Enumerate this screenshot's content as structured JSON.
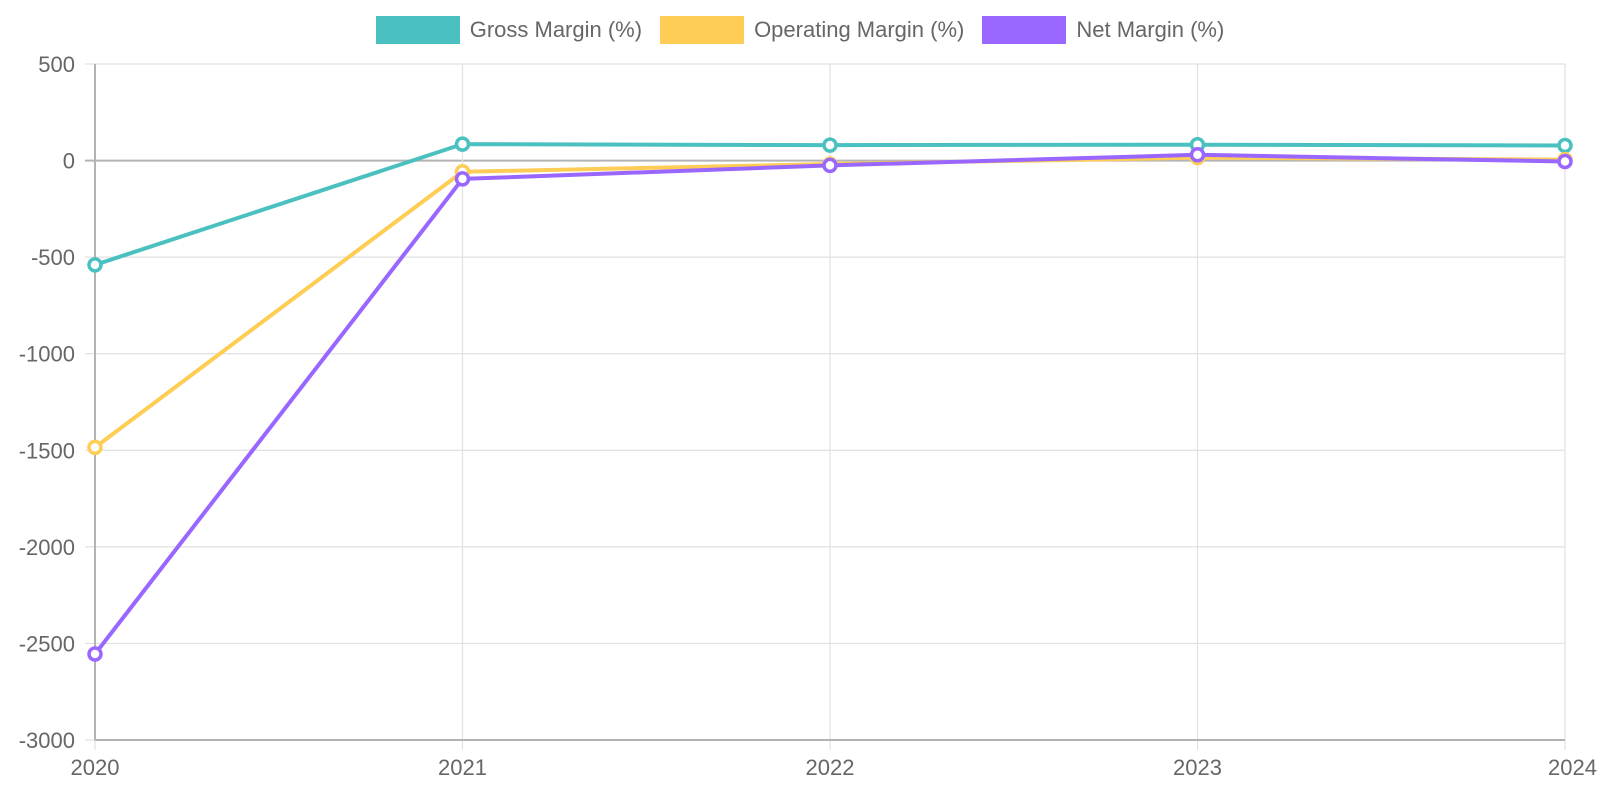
{
  "chart_data": {
    "type": "line",
    "x": [
      "2020",
      "2021",
      "2022",
      "2023",
      "2024"
    ],
    "ylim": [
      -3000,
      500
    ],
    "yticks": [
      500,
      0,
      -500,
      -1000,
      -1500,
      -2000,
      -2500,
      -3000
    ],
    "grid": true,
    "legend_position": "top",
    "series": [
      {
        "name": "Gross Margin (%)",
        "color": "#4bc0c0",
        "values": [
          -540,
          85,
          80,
          82,
          78
        ]
      },
      {
        "name": "Operating Margin (%)",
        "color": "#ffcd56",
        "values": [
          -1485,
          -58,
          -18,
          15,
          5
        ]
      },
      {
        "name": "Net Margin (%)",
        "color": "#9966ff",
        "values": [
          -2555,
          -95,
          -25,
          30,
          -5
        ]
      }
    ]
  }
}
